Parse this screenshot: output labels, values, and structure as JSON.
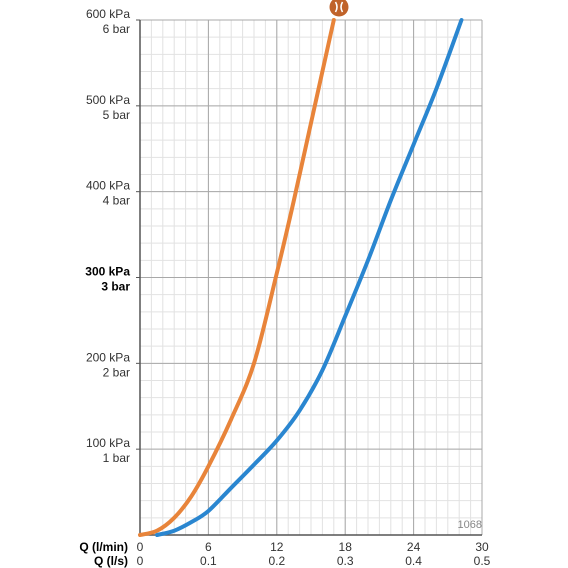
{
  "chart_data": {
    "type": "line",
    "title": "",
    "x_axis_primary": {
      "label": "Q (l/min)",
      "range": [
        0,
        30
      ],
      "ticks": [
        0,
        6,
        12,
        18,
        24,
        30
      ],
      "tick_labels": [
        "0",
        "6",
        "12",
        "18",
        "24",
        "30"
      ]
    },
    "x_axis_secondary": {
      "label": "Q (l/s)",
      "tick_labels": [
        "0",
        "0.1",
        "0.2",
        "0.3",
        "0.4",
        "0.5"
      ]
    },
    "y_axis": {
      "range": [
        0,
        600
      ],
      "unit": "kPa",
      "ticks": [
        100,
        200,
        300,
        400,
        500,
        600
      ],
      "tick_labels_kpa": [
        "100 kPa",
        "200 kPa",
        "300 kPa",
        "400 kPa",
        "500 kPa",
        "600 kPa"
      ],
      "tick_labels_bar": [
        "1 bar",
        "2 bar",
        "3 bar",
        "4 bar",
        "5 bar",
        "6 bar"
      ],
      "highlighted_tick": 300
    },
    "grid": true,
    "series": [
      {
        "color": "#e8843a",
        "points": [
          [
            0,
            0
          ],
          [
            1.5,
            5
          ],
          [
            3,
            20
          ],
          [
            4.5,
            45
          ],
          [
            6,
            80
          ],
          [
            8,
            135
          ],
          [
            10,
            200
          ],
          [
            12,
            305
          ],
          [
            13.5,
            390
          ],
          [
            15,
            480
          ],
          [
            16.5,
            570
          ],
          [
            17,
            600
          ]
        ]
      },
      {
        "color": "#2a86d0",
        "points": [
          [
            1.5,
            0
          ],
          [
            3,
            5
          ],
          [
            4.5,
            15
          ],
          [
            6,
            28
          ],
          [
            8,
            55
          ],
          [
            10,
            82
          ],
          [
            12,
            110
          ],
          [
            14,
            145
          ],
          [
            16,
            192
          ],
          [
            18,
            255
          ],
          [
            20,
            320
          ],
          [
            22,
            390
          ],
          [
            24,
            455
          ],
          [
            26,
            520
          ],
          [
            28.2,
            600
          ]
        ]
      }
    ],
    "markers": [
      {
        "icon": "restrictor-icon",
        "color": "#c0632a"
      }
    ],
    "annotations": [
      "1068"
    ]
  }
}
